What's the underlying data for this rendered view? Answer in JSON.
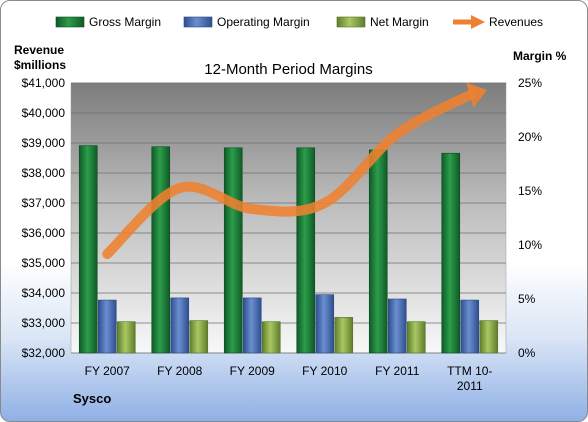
{
  "chart_data": {
    "type": "bar",
    "title": "12-Month Period Margins",
    "company": "Sysco",
    "left_axis": {
      "title_lines": [
        "Revenue",
        "$millions"
      ],
      "min": 32000,
      "max": 41000,
      "step": 1000,
      "tick_labels": [
        "$32,000",
        "$33,000",
        "$34,000",
        "$35,000",
        "$36,000",
        "$37,000",
        "$38,000",
        "$39,000",
        "$40,000",
        "$41,000"
      ]
    },
    "right_axis": {
      "title": "Margin %",
      "min": 0,
      "max": 25,
      "step": 5,
      "tick_labels": [
        "0%",
        "5%",
        "10%",
        "15%",
        "20%",
        "25%"
      ]
    },
    "categories": [
      {
        "lines": [
          "FY 2007"
        ]
      },
      {
        "lines": [
          "FY 2008"
        ]
      },
      {
        "lines": [
          "FY 2009"
        ]
      },
      {
        "lines": [
          "FY 2010"
        ]
      },
      {
        "lines": [
          "FY 2011"
        ]
      },
      {
        "lines": [
          "TTM 10-",
          "2011"
        ]
      }
    ],
    "series": [
      {
        "name": "Gross Margin",
        "type": "bar",
        "axis": "right",
        "color": "#1e8a3c",
        "values": [
          19.2,
          19.1,
          19.0,
          19.0,
          18.8,
          18.5
        ]
      },
      {
        "name": "Operating Margin",
        "type": "bar",
        "axis": "right",
        "color": "#4a6fb5",
        "values": [
          4.9,
          5.1,
          5.1,
          5.4,
          5.0,
          4.9
        ]
      },
      {
        "name": "Net Margin",
        "type": "bar",
        "axis": "right",
        "color": "#8aab45",
        "values": [
          2.9,
          3.0,
          2.9,
          3.3,
          2.9,
          3.0
        ]
      },
      {
        "name": "Revenues",
        "type": "line",
        "axis": "left",
        "color": "#ee8130",
        "values": [
          35300,
          37500,
          36800,
          37000,
          39300,
          40600
        ]
      }
    ],
    "grid": true,
    "legend": "top"
  }
}
